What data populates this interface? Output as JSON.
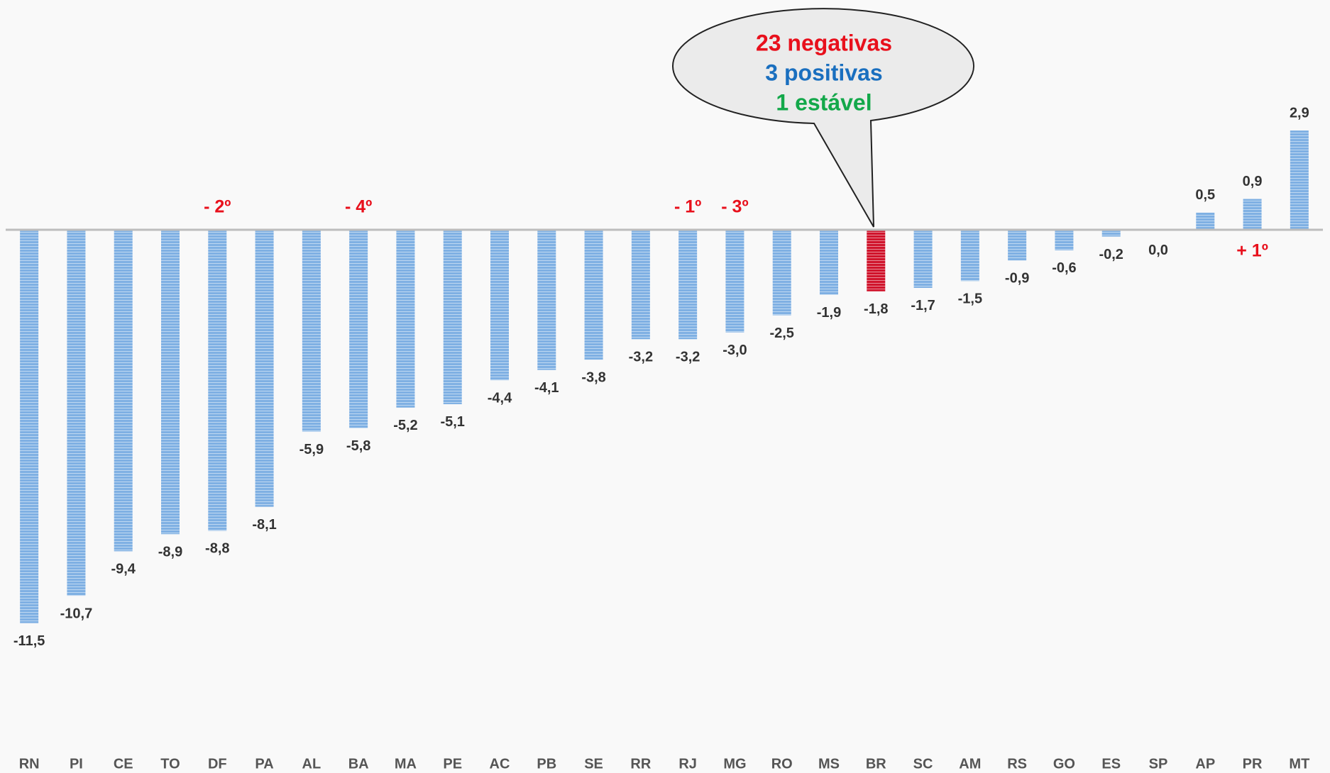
{
  "chart_data": {
    "type": "bar",
    "categories": [
      "RN",
      "PI",
      "CE",
      "TO",
      "DF",
      "PA",
      "AL",
      "BA",
      "MA",
      "PE",
      "AC",
      "PB",
      "SE",
      "RR",
      "RJ",
      "MG",
      "RO",
      "MS",
      "BR",
      "SC",
      "AM",
      "RS",
      "GO",
      "ES",
      "SP",
      "AP",
      "PR",
      "MT"
    ],
    "values": [
      -11.5,
      -10.7,
      -9.4,
      -8.9,
      -8.8,
      -8.1,
      -5.9,
      -5.8,
      -5.2,
      -5.1,
      -4.4,
      -4.1,
      -3.8,
      -3.2,
      -3.2,
      -3.0,
      -2.5,
      -1.9,
      -1.8,
      -1.7,
      -1.5,
      -0.9,
      -0.6,
      -0.2,
      0.0,
      0.5,
      0.9,
      2.9
    ],
    "value_labels": [
      "-11,5",
      "-10,7",
      "-9,4",
      "-8,9",
      "-8,8",
      "-8,1",
      "-5,9",
      "-5,8",
      "-5,2",
      "-5,1",
      "-4,4",
      "-4,1",
      "-3,8",
      "-3,2",
      "-3,2",
      "-3,0",
      "-2,5",
      "-1,9",
      "-1,8",
      "-1,7",
      "-1,5",
      "-0,9",
      "-0,6",
      "-0,2",
      "0,0",
      "0,5",
      "0,9",
      "2,9"
    ],
    "colors": [
      "#7fb0e3",
      "#7fb0e3",
      "#7fb0e3",
      "#7fb0e3",
      "#7fb0e3",
      "#7fb0e3",
      "#7fb0e3",
      "#7fb0e3",
      "#7fb0e3",
      "#7fb0e3",
      "#7fb0e3",
      "#7fb0e3",
      "#7fb0e3",
      "#7fb0e3",
      "#7fb0e3",
      "#7fb0e3",
      "#7fb0e3",
      "#7fb0e3",
      "#d0142c",
      "#7fb0e3",
      "#7fb0e3",
      "#7fb0e3",
      "#7fb0e3",
      "#7fb0e3",
      "#7fb0e3",
      "#7fb0e3",
      "#7fb0e3",
      "#7fb0e3"
    ],
    "ylim": [
      -13,
      4
    ],
    "annotations": [
      {
        "text": "- 2º",
        "at": "DF",
        "side": "above"
      },
      {
        "text": "- 4º",
        "at": "BA",
        "side": "above"
      },
      {
        "text": "- 1º",
        "at": "RJ",
        "side": "above"
      },
      {
        "text": "- 3º",
        "at": "MG",
        "side": "above"
      },
      {
        "text": "+ 1º",
        "at": "PR",
        "side": "below"
      }
    ],
    "callout": [
      {
        "text": "23 negativas",
        "color": "#e8101c"
      },
      {
        "text": "3 positivas",
        "color": "#1a6fbf"
      },
      {
        "text": "1 estável",
        "color": "#13a84a"
      }
    ]
  }
}
